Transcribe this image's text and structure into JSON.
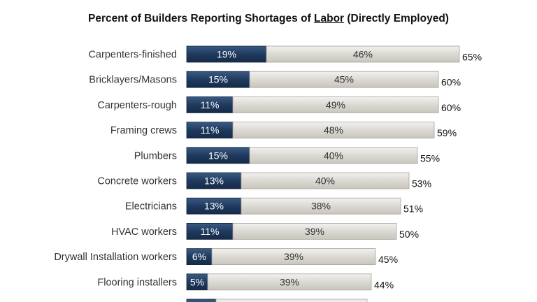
{
  "chart_data": {
    "type": "bar",
    "orientation": "horizontal",
    "stacked": true,
    "title": {
      "prefix": "Percent of Builders Reporting Shortages of ",
      "emphasis": "Labor",
      "suffix": " (Directly Employed)"
    },
    "categories": [
      "Carpenters-finished",
      "Bricklayers/Masons",
      "Carpenters-rough",
      "Framing crews",
      "Plumbers",
      "Concrete workers",
      "Electricians",
      "HVAC workers",
      "Drywall Installation workers",
      "Flooring installers",
      ""
    ],
    "series": [
      {
        "values": [
          19,
          15,
          11,
          11,
          15,
          13,
          13,
          11,
          6,
          5,
          7
        ],
        "color": "#1f3a5f"
      },
      {
        "values": [
          46,
          45,
          49,
          48,
          40,
          40,
          38,
          39,
          39,
          39,
          36
        ],
        "color": "#d9d6d0"
      }
    ],
    "totals": [
      65,
      60,
      60,
      59,
      55,
      53,
      51,
      50,
      45,
      44,
      43
    ],
    "segment_labels": [
      [
        "19%",
        "46%"
      ],
      [
        "15%",
        "45%"
      ],
      [
        "11%",
        "49%"
      ],
      [
        "11%",
        "48%"
      ],
      [
        "15%",
        "40%"
      ],
      [
        "13%",
        "40%"
      ],
      [
        "13%",
        "38%"
      ],
      [
        "11%",
        "39%"
      ],
      [
        "6%",
        "39%"
      ],
      [
        "5%",
        "39%"
      ],
      [
        "",
        ""
      ]
    ],
    "total_labels": [
      "65%",
      "60%",
      "60%",
      "59%",
      "55%",
      "53%",
      "51%",
      "50%",
      "45%",
      "44%",
      ""
    ],
    "xlim": [
      0,
      100
    ],
    "grid": false,
    "legend": "none"
  }
}
